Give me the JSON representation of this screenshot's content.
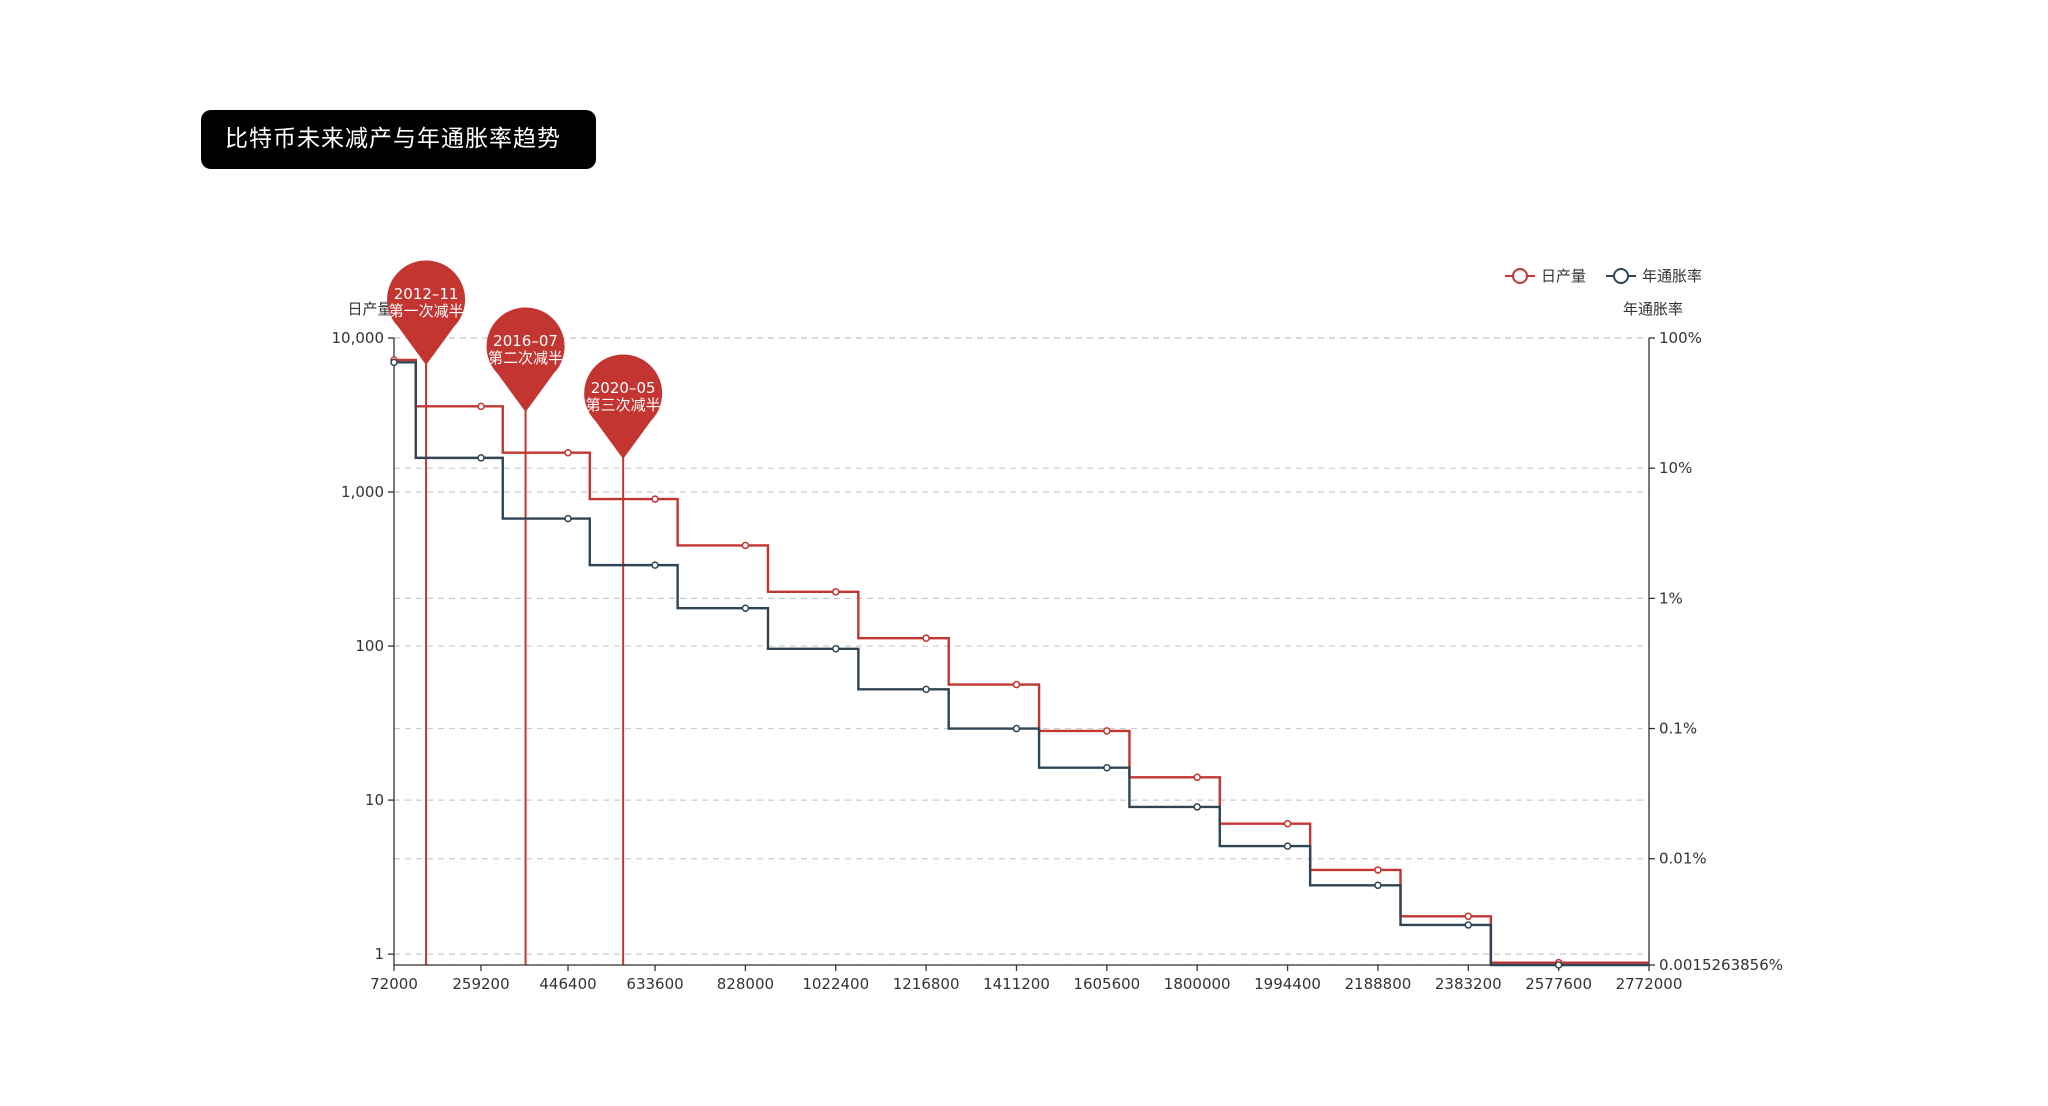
{
  "title": "比特币未来减产与年通胀率趋势",
  "colors": {
    "daily": "#c23531",
    "inflation": "#2f4554",
    "grid": "#cccccc",
    "axis": "#333333"
  },
  "chart_data": {
    "type": "line",
    "title": "比特币未来减产与年通胀率趋势",
    "legend": [
      "日产量",
      "年通胀率"
    ],
    "legend_position": "top-right",
    "left_axis": {
      "name": "日产量",
      "scale": "log",
      "range": [
        0.85,
        10000
      ],
      "ticks": [
        {
          "value": 1,
          "label": "1"
        },
        {
          "value": 10,
          "label": "10"
        },
        {
          "value": 100,
          "label": "100"
        },
        {
          "value": 1000,
          "label": "1,000"
        },
        {
          "value": 10000,
          "label": "10,000"
        }
      ]
    },
    "right_axis": {
      "name": "年通胀率",
      "scale": "log",
      "range": [
        0.0015263856,
        100
      ],
      "ticks": [
        {
          "value": 100,
          "label": "100%"
        },
        {
          "value": 10,
          "label": "10%"
        },
        {
          "value": 1,
          "label": "1%"
        },
        {
          "value": 0.1,
          "label": "0.1%"
        },
        {
          "value": 0.01,
          "label": "0.01%"
        },
        {
          "value": 0.0015263856,
          "label": "0.0015263856%"
        }
      ]
    },
    "x_axis": {
      "range": [
        72000,
        2772000
      ],
      "ticks": [
        "72000",
        "259200",
        "446400",
        "633600",
        "828000",
        "1022400",
        "1216800",
        "1411200",
        "1605600",
        "1800000",
        "1994400",
        "2188800",
        "2383200",
        "2577600",
        "2772000"
      ]
    },
    "grid": true,
    "series": [
      {
        "name": "日产量",
        "step": true,
        "points": [
          [
            72000,
            7200
          ],
          [
            259200,
            3600
          ],
          [
            446400,
            1800
          ],
          [
            633600,
            900
          ],
          [
            828000,
            450
          ],
          [
            1022400,
            225
          ],
          [
            1216800,
            112.5
          ],
          [
            1411200,
            56.25
          ],
          [
            1605600,
            28.125
          ],
          [
            1800000,
            14.0625
          ],
          [
            1994400,
            7.03
          ],
          [
            2188800,
            3.52
          ],
          [
            2383200,
            1.76
          ],
          [
            2577600,
            0.88
          ]
        ]
      },
      {
        "name": "年通胀率",
        "step": true,
        "points": [
          [
            72000,
            65
          ],
          [
            259200,
            12
          ],
          [
            446400,
            4.1
          ],
          [
            633600,
            1.8
          ],
          [
            828000,
            0.84
          ],
          [
            1022400,
            0.41
          ],
          [
            1216800,
            0.2
          ],
          [
            1411200,
            0.1
          ],
          [
            1605600,
            0.05
          ],
          [
            1800000,
            0.025
          ],
          [
            1994400,
            0.0125
          ],
          [
            2188800,
            0.00625
          ],
          [
            2383200,
            0.0031
          ],
          [
            2577600,
            0.0015263856
          ]
        ]
      }
    ],
    "annotations": [
      {
        "x": 141000,
        "date": "2012–11",
        "label": "第一次减半"
      },
      {
        "x": 355000,
        "date": "2016–07",
        "label": "第二次减半"
      },
      {
        "x": 565000,
        "date": "2020–05",
        "label": "第三次减半"
      }
    ]
  }
}
